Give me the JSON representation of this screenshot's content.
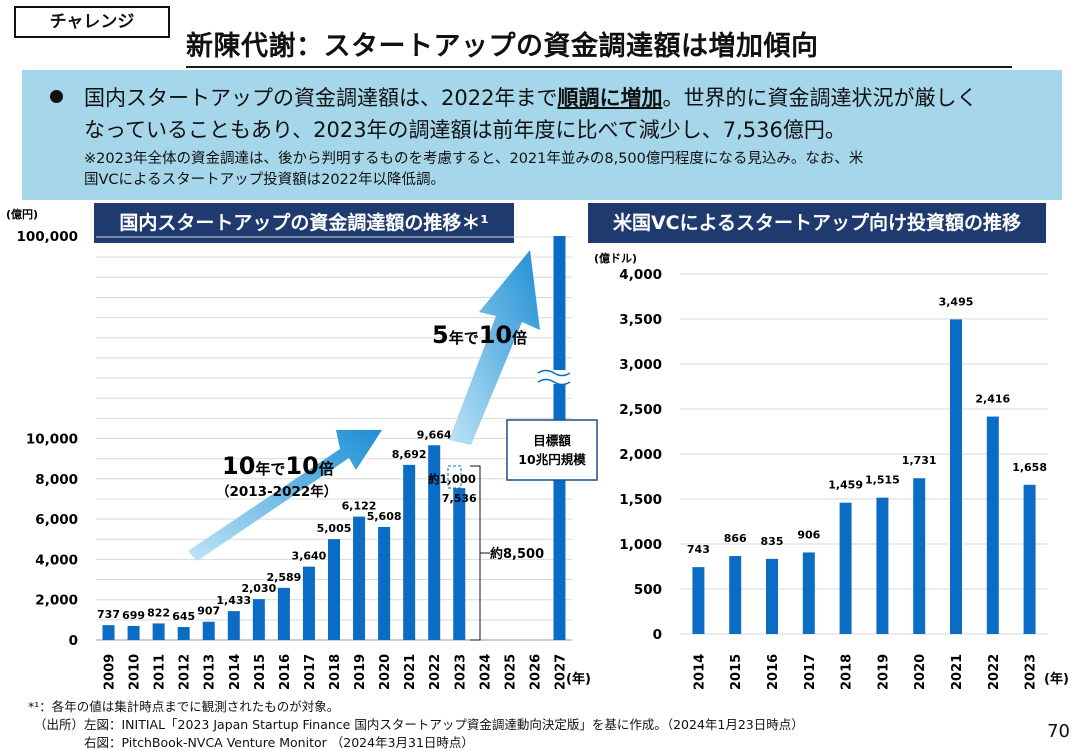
{
  "header": {
    "tag": "チャレンジ",
    "title": "新陳代謝：スタートアップの資金調達額は増加傾向"
  },
  "summary": {
    "line1_pre": "国内スタートアップの資金調達額は、2022年まで",
    "line1_highlight": "順調に増加",
    "line1_post": "。世界的に資金調達状況が厳しく",
    "line2": "なっていることもあり、2023年の調達額は前年度に比べて減少し、7,536億円。",
    "note1": "※2023年全体の資金調達は、後から判明するものを考慮すると、2021年並みの8,500億円程度になる見込み。なお、米",
    "note2": "国VCによるスタートアップ投資額は2022年以降低調。"
  },
  "left_chart": {
    "title": "国内スタートアップの資金調達額の推移＊¹",
    "unit": "(億円)",
    "year_unit": "(年)",
    "arrow1_num1": "10",
    "arrow1_mid": "年で",
    "arrow1_num2": "10",
    "arrow1_end": "倍",
    "arrow1_sub": "（2013-2022年）",
    "arrow2_num1": "5",
    "arrow2_mid": "年で",
    "arrow2_num2": "10",
    "arrow2_end": "倍",
    "target_line1": "目標額",
    "target_line2": "10兆円規模",
    "approx_1000": "約1,000",
    "approx_8500": "約8,500"
  },
  "right_chart": {
    "title": "米国VCによるスタートアップ向け投資額の推移",
    "unit": "(億ドル)",
    "year_unit": "(年)"
  },
  "chart_data": [
    {
      "type": "bar",
      "title": "国内スタートアップの資金調達額の推移＊¹",
      "ylabel": "(億円)",
      "xlabel": "(年)",
      "ytick_labels": [
        "0",
        "2,000",
        "4,000",
        "6,000",
        "8,000",
        "10,000",
        "100,000"
      ],
      "axis_break": "10,000 – 100,000",
      "categories": [
        "2009",
        "2010",
        "2011",
        "2012",
        "2013",
        "2014",
        "2015",
        "2016",
        "2017",
        "2018",
        "2019",
        "2020",
        "2021",
        "2022",
        "2023",
        "2024",
        "2025",
        "2026",
        "2027"
      ],
      "values": [
        737,
        699,
        822,
        645,
        907,
        1433,
        2030,
        2589,
        3640,
        5005,
        6122,
        5608,
        8692,
        9664,
        7536,
        null,
        null,
        null,
        100000
      ],
      "value_labels": [
        "737",
        "699",
        "822",
        "645",
        "907",
        "1,433",
        "2,030",
        "2,589",
        "3,640",
        "5,005",
        "6,122",
        "5,608",
        "8,692",
        "9,664",
        "7,536",
        "",
        "",
        "",
        ""
      ],
      "annotations": [
        "約1,000",
        "約8,500",
        "目標額 10兆円規模",
        "10年で10倍（2013-2022年）",
        "5年で10倍"
      ],
      "color": "#0a6cc4"
    },
    {
      "type": "bar",
      "title": "米国VCによるスタートアップ向け投資額の推移",
      "ylabel": "(億ドル)",
      "xlabel": "(年)",
      "ylim": [
        0,
        4000
      ],
      "ytick_labels": [
        "0",
        "500",
        "1,000",
        "1,500",
        "2,000",
        "2,500",
        "3,000",
        "3,500",
        "4,000"
      ],
      "categories": [
        "2014",
        "2015",
        "2016",
        "2017",
        "2018",
        "2019",
        "2020",
        "2021",
        "2022",
        "2023"
      ],
      "values": [
        743,
        866,
        835,
        906,
        1459,
        1515,
        1731,
        3495,
        2416,
        1658
      ],
      "value_labels": [
        "743",
        "866",
        "835",
        "906",
        "1,459",
        "1,515",
        "1,731",
        "3,495",
        "2,416",
        "1,658"
      ],
      "color": "#0a6cc4"
    }
  ],
  "footer": {
    "note": "*¹：各年の値は集計時点までに観測されたものが対象。",
    "source1": "（出所）左図：INITIAL「2023 Japan Startup Finance 国内スタートアップ資金調達動向決定版」を基に作成。（2024年1月23日時点）",
    "source2": "右図：PitchBook-NVCA Venture Monitor （2024年3月31日時点）",
    "page": "70"
  }
}
